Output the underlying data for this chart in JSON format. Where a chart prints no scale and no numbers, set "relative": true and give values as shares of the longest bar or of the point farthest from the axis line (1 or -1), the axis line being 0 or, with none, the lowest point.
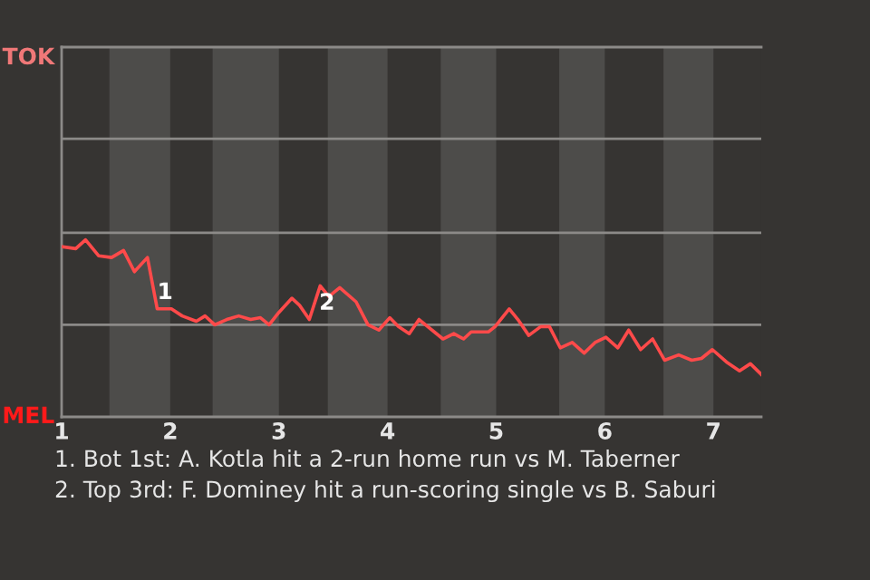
{
  "chart_data": {
    "type": "line",
    "relative": true,
    "x": [
      1.01,
      1.13,
      1.22,
      1.34,
      1.46,
      1.57,
      1.67,
      1.79,
      1.88,
      2.01,
      2.11,
      2.24,
      2.32,
      2.41,
      2.52,
      2.63,
      2.74,
      2.83,
      2.91,
      3.0,
      3.12,
      3.19,
      3.28,
      3.38,
      3.46,
      3.56,
      3.71,
      3.82,
      3.92,
      4.02,
      4.1,
      4.2,
      4.29,
      4.51,
      4.61,
      4.7,
      4.77,
      4.93,
      4.99,
      5.12,
      5.2,
      5.3,
      5.41,
      5.49,
      5.59,
      5.7,
      5.81,
      5.91,
      6.01,
      6.12,
      6.22,
      6.33,
      6.44,
      6.55,
      6.68,
      6.8,
      6.89,
      6.99,
      7.12,
      7.24,
      7.34,
      7.44
    ],
    "series": [
      {
        "color": "#ff4a4a",
        "values": [
          0.96,
          0.95,
          1,
          0.91,
          0.9,
          0.94,
          0.82,
          0.9,
          0.61,
          0.61,
          0.57,
          0.54,
          0.57,
          0.52,
          0.55,
          0.57,
          0.55,
          0.56,
          0.52,
          0.59,
          0.67,
          0.63,
          0.55,
          0.74,
          0.68,
          0.73,
          0.65,
          0.52,
          0.49,
          0.56,
          0.51,
          0.47,
          0.55,
          0.44,
          0.47,
          0.44,
          0.48,
          0.48,
          0.51,
          0.61,
          0.55,
          0.46,
          0.51,
          0.51,
          0.39,
          0.42,
          0.36,
          0.42,
          0.45,
          0.39,
          0.49,
          0.38,
          0.44,
          0.32,
          0.35,
          0.32,
          0.33,
          0.38,
          0.31,
          0.26,
          0.3,
          0.24
        ]
      }
    ],
    "xlim": [
      1,
      7.44
    ],
    "xticks": [
      1,
      2,
      3,
      4,
      5,
      6,
      7
    ],
    "ref_lines": [
      {
        "axis": "y",
        "value": 0.52,
        "color": "#8c8a88"
      },
      {
        "axis": "y",
        "value": 1.04,
        "color": "#8c8a88"
      },
      {
        "axis": "y",
        "value": 1.57,
        "color": "#8c8a88"
      }
    ],
    "marker": "none",
    "line_style": "solid",
    "bands": [
      {
        "axis": "x",
        "from": 1.44,
        "to": 2,
        "color": "#4d4c4a"
      },
      {
        "axis": "x",
        "from": 2.39,
        "to": 3,
        "color": "#4d4c4a"
      },
      {
        "axis": "x",
        "from": 3.45,
        "to": 4,
        "color": "#4d4c4a"
      },
      {
        "axis": "x",
        "from": 4.49,
        "to": 5,
        "color": "#4d4c4a"
      },
      {
        "axis": "x",
        "from": 5.58,
        "to": 6,
        "color": "#4d4c4a"
      },
      {
        "axis": "x",
        "from": 6.54,
        "to": 7,
        "color": "#4d4c4a"
      }
    ],
    "annotations": [
      "TOK",
      "MEL",
      {
        "text": "1",
        "x": 1.88,
        "y": 0.61
      },
      {
        "text": "2",
        "x": 3.37,
        "y": 0.55
      },
      "1. Bot 1st: A. Kotla hit a 2-run home run vs M. Taberner",
      "2. Top 3rd: F. Dominey hit a run-scoring single vs B. Saburi"
    ]
  }
}
